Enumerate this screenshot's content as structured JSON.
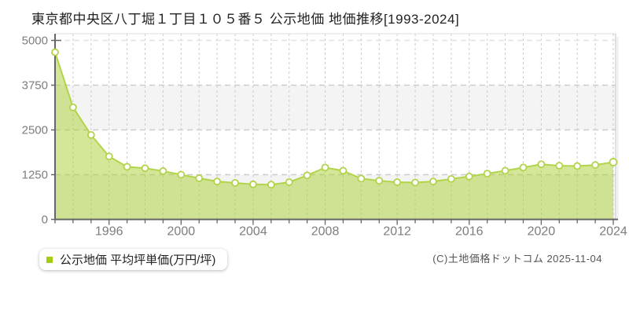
{
  "page": {
    "title": "東京都中央区八丁堀１丁目１０５番５ 公示地価 地価推移[1993-2024]",
    "copyright": "(C)土地価格ドットコム 2025-11-04"
  },
  "legend": {
    "label": "公示地価 平均坪単価(万円/坪)",
    "marker_color": "#a6ce11"
  },
  "chart_data": {
    "type": "area",
    "title": "東京都中央区八丁堀１丁目１０５番５ 公示地価 地価推移[1993-2024]",
    "x": [
      1993,
      1994,
      1995,
      1996,
      1997,
      1998,
      1999,
      2000,
      2001,
      2002,
      2003,
      2004,
      2005,
      2006,
      2007,
      2008,
      2009,
      2010,
      2011,
      2012,
      2013,
      2014,
      2015,
      2016,
      2017,
      2018,
      2019,
      2020,
      2021,
      2022,
      2023,
      2024
    ],
    "series": [
      {
        "name": "公示地価 平均坪単価(万円/坪)",
        "values": [
          4670,
          3130,
          2360,
          1760,
          1470,
          1430,
          1350,
          1250,
          1150,
          1060,
          1020,
          980,
          970,
          1040,
          1230,
          1450,
          1360,
          1140,
          1080,
          1040,
          1030,
          1060,
          1130,
          1200,
          1280,
          1360,
          1450,
          1540,
          1500,
          1490,
          1520,
          1600
        ]
      }
    ],
    "xlabel": "",
    "ylabel": "万円/坪",
    "ylim": [
      0,
      5000
    ],
    "yticks": [
      0,
      1250,
      2500,
      3750,
      5000
    ],
    "xticks": [
      1996,
      2000,
      2004,
      2008,
      2012,
      2016,
      2020,
      2024
    ],
    "grid": true,
    "legend_position": "bottom-left",
    "colors": {
      "area_fill": "#a9d032",
      "area_opacity": 0.5,
      "line": "#b2d44a",
      "marker_fill": "#ffffff",
      "band": "#f4f4f4",
      "grid": "#cccccc",
      "grid_top": "#e2e2e2",
      "plot_border": "#dddddd",
      "axis": "#666666",
      "tick_label": "#7d7d7d"
    }
  }
}
